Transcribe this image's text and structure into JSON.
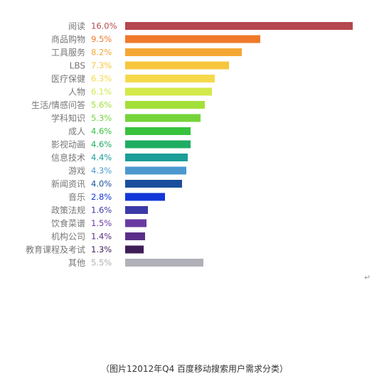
{
  "chart_data": {
    "type": "bar",
    "orientation": "horizontal",
    "title": "",
    "xlabel": "",
    "ylabel": "",
    "xlim": [
      0,
      16
    ],
    "grid": false,
    "legend": "none",
    "categories": [
      "阅读",
      "商品购物",
      "工具服务",
      "LBS",
      "医疗保健",
      "人物",
      "生活/情感问答",
      "学科知识",
      "成人",
      "影视动画",
      "信息技术",
      "游戏",
      "新闻资讯",
      "音乐",
      "政策法规",
      "饮食菜谱",
      "机构公司",
      "教育课程及考试",
      "其他"
    ],
    "values": [
      16.0,
      9.5,
      8.2,
      7.3,
      6.3,
      6.1,
      5.6,
      5.3,
      4.6,
      4.6,
      4.4,
      4.3,
      4.0,
      2.8,
      1.6,
      1.5,
      1.4,
      1.3,
      5.5
    ],
    "value_labels": [
      "16.0%",
      "9.5%",
      "8.2%",
      "7.3%",
      "6.3%",
      "6.1%",
      "5.6%",
      "5.3%",
      "4.6%",
      "4.6%",
      "4.4%",
      "4.3%",
      "4.0%",
      "2.8%",
      "1.6%",
      "1.5%",
      "1.4%",
      "1.3%",
      "5.5%"
    ],
    "colors": [
      "#b5474e",
      "#f07a2b",
      "#f5a734",
      "#f7c63d",
      "#f5d94b",
      "#d4e94a",
      "#a3e03a",
      "#76d43b",
      "#37c23e",
      "#1fad63",
      "#1b9e98",
      "#4a98cf",
      "#1b4f9c",
      "#1237d9",
      "#3b3aa6",
      "#6a3aa3",
      "#5a2e8a",
      "#3e1e56",
      "#b0b0b8"
    ]
  },
  "caption": "（图片12012年Q4 百度移动搜索用户需求分类）",
  "return_mark": "↵"
}
